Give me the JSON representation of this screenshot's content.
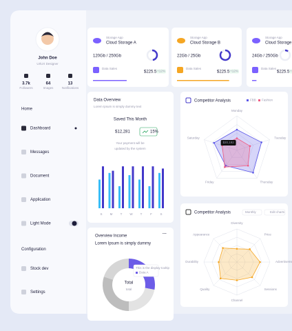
{
  "sidebar": {
    "profile": {
      "name": "John Doe",
      "role": "UI/UX Designer"
    },
    "stats": [
      {
        "value": "3.7k",
        "label": "Followers"
      },
      {
        "value": "64",
        "label": "Images"
      },
      {
        "value": "13",
        "label": "Notifications"
      }
    ],
    "sections": [
      {
        "title": "Home",
        "items": [
          "Dashboard",
          "Messages",
          "Document",
          "Application",
          "Light Mode"
        ]
      },
      {
        "title": "Configuration",
        "items": [
          "Stock dev",
          "Settings"
        ]
      }
    ]
  },
  "storage_cards": [
    {
      "tag": "Storage App",
      "title": "Cloud Storage A",
      "usage": "120Gb / 250Gb",
      "sales_label": "Data Sales",
      "sales": "$225.5K",
      "change": "+12%",
      "progress": 48,
      "color": "#7b61ff"
    },
    {
      "tag": "Storage App",
      "title": "Cloud Storage B",
      "usage": "22Gb / 25Gb",
      "sales_label": "Data Sales",
      "sales": "$225.5K",
      "change": "+12%",
      "progress": 88,
      "color": "#f5a623"
    },
    {
      "tag": "Storage App",
      "title": "Cloud Storage C",
      "usage": "24Gb / 250Gb",
      "sales_label": "Data Sales",
      "sales": "$225.5K",
      "change": "+12%",
      "progress": 10,
      "color": "#7b61ff"
    }
  ],
  "data_overview": {
    "title": "Data Overview",
    "subtitle": "Lorem Ipsum is simply dummy text",
    "saved_label": "Saved This Month",
    "amount": "$12,281",
    "change": "15%",
    "note": [
      "Your payment will be",
      "updated by the system"
    ],
    "chart": {
      "type": "bar",
      "categories": [
        "S",
        "M",
        "T",
        "W",
        "T",
        "F",
        "S"
      ],
      "ylim": [
        0,
        100
      ],
      "series": [
        {
          "color": "#38bdf8",
          "values": [
            65,
            80,
            50,
            75,
            65,
            50,
            80
          ]
        },
        {
          "color": "#4338ca",
          "values": [
            95,
            85,
            95,
            95,
            95,
            95,
            90
          ]
        }
      ]
    }
  },
  "competitor_radar": {
    "title": "Competitor Analysis",
    "chart": {
      "type": "radar",
      "axes": [
        "Monday",
        "Tuesday",
        "Thursday",
        "Friday",
        "Saturday"
      ],
      "rlim": [
        0,
        100
      ],
      "series": [
        {
          "name": "FBB",
          "color": "#5b57e8",
          "values": [
            60,
            75,
            80,
            55,
            70
          ]
        },
        {
          "name": "Fashion",
          "color": "#f05a82",
          "values": [
            35,
            40,
            55,
            60,
            45
          ]
        }
      ],
      "tooltip": "$20,192"
    }
  },
  "competitor_radar_2": {
    "title": "Competitor Analysis",
    "period": "Monthly",
    "edit": "Edit charts",
    "chart": {
      "type": "radar",
      "axes": [
        "Diversity",
        "Price",
        "Advertisement",
        "Sessions",
        "Channel",
        "Quality",
        "Durability",
        "Appearance"
      ],
      "rlim": [
        0,
        100
      ],
      "series": [
        {
          "color": "#f5a623",
          "values": [
            40,
            55,
            70,
            65,
            55,
            70,
            55,
            60
          ]
        }
      ]
    }
  },
  "overview_income": {
    "title": "Overview Income",
    "subtitle": "Lorem Ipsum is simply dummy",
    "center_label": "Total",
    "center_sub": "total",
    "tooltip_title": "This is the display tooltip",
    "tooltip_item": "Data A",
    "chart": {
      "type": "donut",
      "values": [
        28,
        22,
        30,
        20
      ],
      "colors": [
        "#6c5ce7",
        "#e3e3e3",
        "#bdbdbd",
        "#d6d6d6"
      ]
    }
  }
}
